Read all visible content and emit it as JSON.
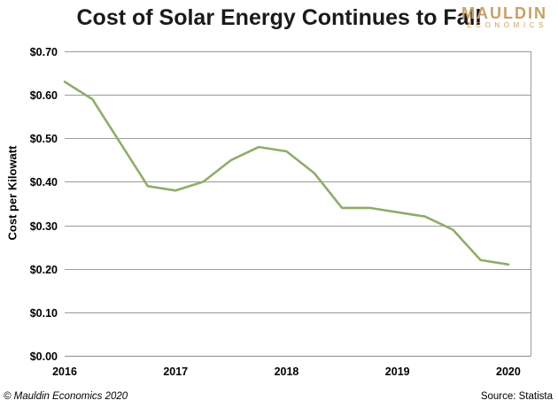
{
  "chart_data": {
    "type": "line",
    "title": "Cost of Solar Energy Continues to Fall",
    "ylabel": "Cost per Kilowatt",
    "xlabel": "",
    "ylim": [
      0,
      0.7
    ],
    "xlim": [
      2016,
      2020.2
    ],
    "x_ticks": [
      2016,
      2017,
      2018,
      2019,
      2020
    ],
    "y_ticks": [
      0,
      0.1,
      0.2,
      0.3,
      0.4,
      0.5,
      0.6,
      0.7
    ],
    "y_tick_labels": [
      "$0.00",
      "$0.10",
      "$0.20",
      "$0.30",
      "$0.40",
      "$0.50",
      "$0.60",
      "$0.70"
    ],
    "grid": "horizontal",
    "series": [
      {
        "color": "#8fac6b",
        "points": [
          {
            "x": 2016.0,
            "y": 0.63
          },
          {
            "x": 2016.25,
            "y": 0.59
          },
          {
            "x": 2016.5,
            "y": 0.49
          },
          {
            "x": 2016.75,
            "y": 0.39
          },
          {
            "x": 2017.0,
            "y": 0.38
          },
          {
            "x": 2017.25,
            "y": 0.4
          },
          {
            "x": 2017.5,
            "y": 0.45
          },
          {
            "x": 2017.75,
            "y": 0.48
          },
          {
            "x": 2018.0,
            "y": 0.47
          },
          {
            "x": 2018.25,
            "y": 0.42
          },
          {
            "x": 2018.5,
            "y": 0.34
          },
          {
            "x": 2018.75,
            "y": 0.34
          },
          {
            "x": 2019.0,
            "y": 0.33
          },
          {
            "x": 2019.25,
            "y": 0.32
          },
          {
            "x": 2019.5,
            "y": 0.29
          },
          {
            "x": 2019.75,
            "y": 0.22
          },
          {
            "x": 2020.0,
            "y": 0.21
          }
        ]
      }
    ]
  },
  "branding": {
    "logo_main": "MAULDIN",
    "logo_sub": "ECONOMICS",
    "logo_color": "#c8a064"
  },
  "footer": {
    "copyright": "© Mauldin Economics 2020",
    "source": "Source: Statista"
  }
}
